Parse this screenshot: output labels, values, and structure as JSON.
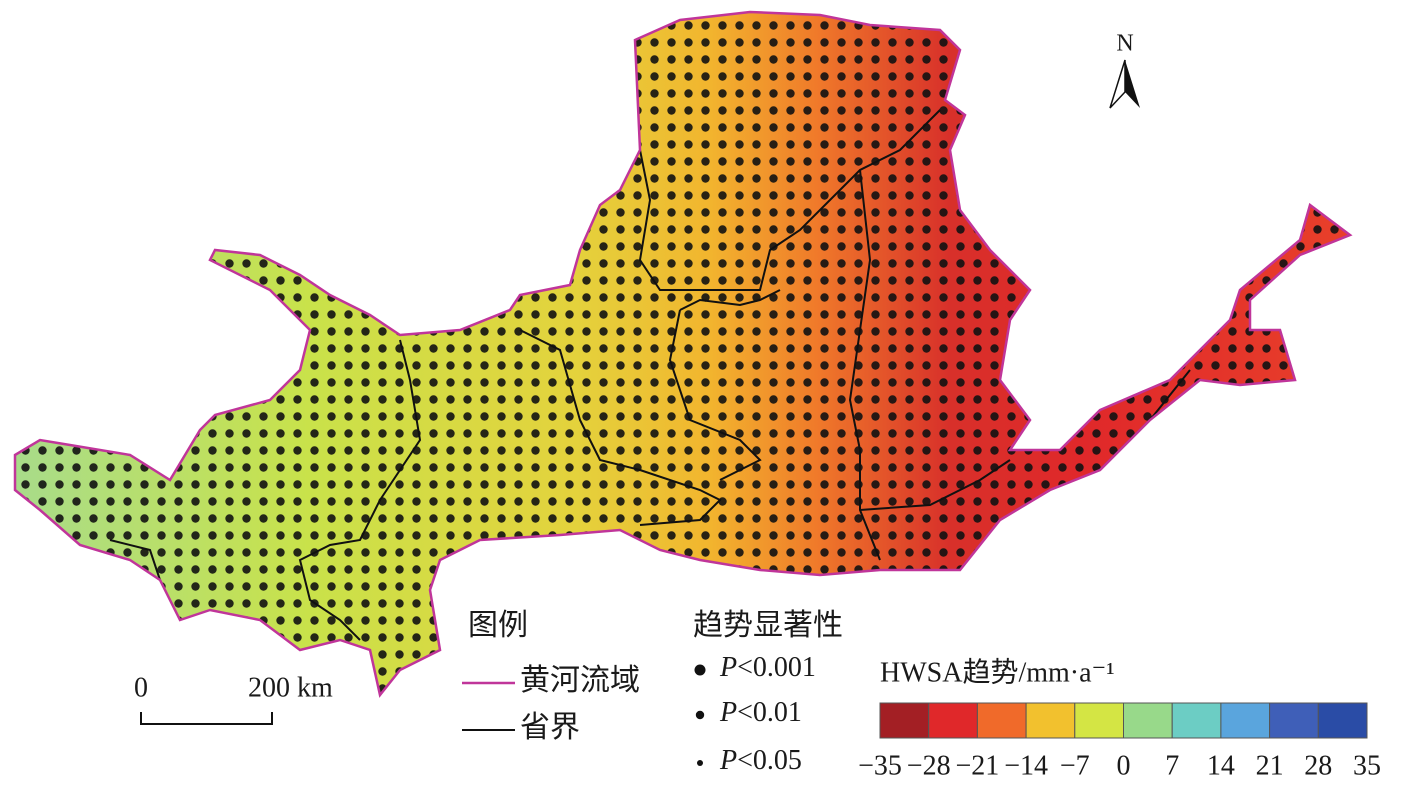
{
  "map": {
    "north_label": "N",
    "legend": {
      "title": "图例",
      "basin": "黄河流域",
      "province": "省界",
      "basin_color": "#c0359a",
      "province_color": "#111111"
    },
    "significance": {
      "title": "趋势显著性",
      "items": [
        {
          "italic": "P",
          "text": "<0.001"
        },
        {
          "italic": "P",
          "text": "<0.01"
        },
        {
          "italic": "P",
          "text": "<0.05"
        }
      ]
    },
    "colorbar": {
      "title": "HWSA趋势/mm·a⁻¹",
      "colors": [
        "#a31f24",
        "#e0282a",
        "#f06a2a",
        "#f2c12e",
        "#d4e544",
        "#98d98a",
        "#6ccdc4",
        "#5aa5dd",
        "#3f5fb8",
        "#2a4ca6"
      ],
      "ticks": [
        {
          "value": -35,
          "label": "−35"
        },
        {
          "value": -28,
          "label": "−28"
        },
        {
          "value": -21,
          "label": "−21"
        },
        {
          "value": -14,
          "label": "−14"
        },
        {
          "value": -7,
          "label": "−7"
        },
        0,
        7,
        14,
        21,
        28,
        35
      ]
    },
    "scale_bar": {
      "start": "0",
      "end": "200 km"
    }
  }
}
